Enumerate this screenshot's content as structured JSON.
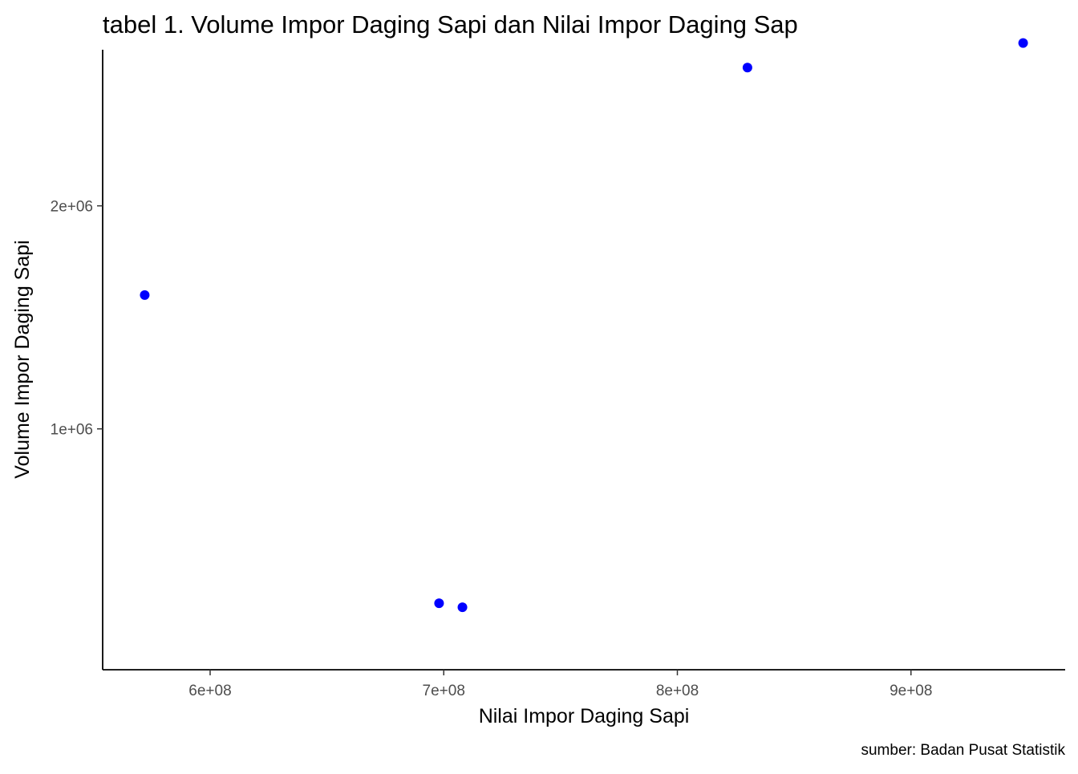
{
  "chart_data": {
    "type": "scatter",
    "title": "tabel 1. Volume Impor Daging Sapi dan Nilai Impor Daging Sap",
    "xlabel": "Nilai Impor Daging Sapi",
    "ylabel": "Volume Impor Daging Sapi",
    "caption": "sumber: Badan Pusat Statistik",
    "xlim": [
      554000000,
      966000000
    ],
    "ylim": [
      -80000,
      2700000
    ],
    "x_ticks": [
      600000000,
      700000000,
      800000000,
      900000000
    ],
    "x_tick_labels": [
      "6e+08",
      "7e+08",
      "8e+08",
      "9e+08"
    ],
    "y_ticks": [
      1000000,
      2000000
    ],
    "y_tick_labels": [
      "1e+06",
      "2e+06"
    ],
    "point_color": "#0000ff",
    "grid": false,
    "points": [
      {
        "x": 572000000,
        "y": 1600000
      },
      {
        "x": 698000000,
        "y": 218000
      },
      {
        "x": 708000000,
        "y": 200000
      },
      {
        "x": 830000000,
        "y": 2620000
      },
      {
        "x": 948000000,
        "y": 2730000
      }
    ]
  }
}
